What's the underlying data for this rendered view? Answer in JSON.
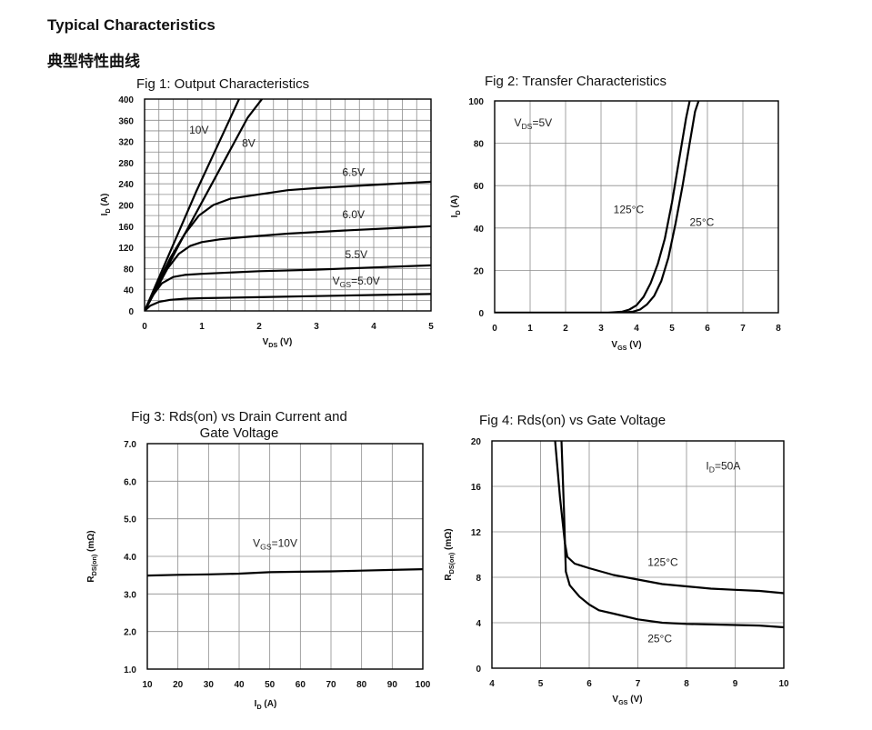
{
  "page": {
    "heading": "Typical Characteristics",
    "heading_cn": "典型特性曲线"
  },
  "chart_data": [
    {
      "id": "fig1",
      "type": "line",
      "title": "Fig 1: Output Characteristics",
      "xlabel": "VDS (V)",
      "x_sym": "V",
      "x_sub": "DS",
      "x_unit": " (V)",
      "ylabel": "ID (A)",
      "y_sym": "I",
      "y_sub": "D",
      "y_unit": " (A)",
      "xlim": [
        0,
        5
      ],
      "ylim": [
        0,
        400
      ],
      "xticks": [
        0,
        1,
        2,
        3,
        4,
        5
      ],
      "xticklabels": [
        "0",
        "1",
        "2",
        "3",
        "4",
        "5"
      ],
      "yticks": [
        0,
        40,
        80,
        120,
        160,
        200,
        240,
        280,
        320,
        360,
        400
      ],
      "yticklabels": [
        "0",
        "40",
        "80",
        "120",
        "160",
        "200",
        "240",
        "280",
        "320",
        "360",
        "400"
      ],
      "xgrid_step": 0.25,
      "ygrid_step": 20,
      "series": [
        {
          "name": "10V",
          "x": [
            0,
            0.3,
            0.6,
            0.9,
            1.2,
            1.5,
            1.65
          ],
          "y": [
            0,
            75,
            150,
            225,
            295,
            365,
            400
          ]
        },
        {
          "name": "8V",
          "x": [
            0,
            0.3,
            0.6,
            0.9,
            1.2,
            1.5,
            1.8,
            2.05
          ],
          "y": [
            0,
            62,
            125,
            185,
            245,
            305,
            365,
            400
          ]
        },
        {
          "name": "6.5V",
          "x": [
            0,
            0.2,
            0.45,
            0.7,
            0.95,
            1.2,
            1.5,
            2.0,
            2.5,
            3.0,
            3.5,
            4.0,
            4.5,
            5.0
          ],
          "y": [
            0,
            45,
            100,
            145,
            180,
            200,
            212,
            220,
            228,
            232,
            235,
            238,
            241,
            244
          ]
        },
        {
          "name": "6.0V",
          "x": [
            0,
            0.2,
            0.4,
            0.6,
            0.8,
            1.0,
            1.3,
            1.7,
            2.5,
            3.5,
            4.5,
            5.0
          ],
          "y": [
            0,
            40,
            80,
            108,
            123,
            130,
            135,
            139,
            146,
            152,
            157,
            160
          ]
        },
        {
          "name": "5.5V",
          "x": [
            0,
            0.15,
            0.3,
            0.5,
            0.7,
            1.0,
            2.0,
            3.0,
            4.0,
            5.0
          ],
          "y": [
            0,
            30,
            52,
            64,
            68,
            70,
            75,
            78,
            82,
            86
          ]
        },
        {
          "name": "VGS=5.0V",
          "x": [
            0,
            0.1,
            0.25,
            0.45,
            0.7,
            1.0,
            2.0,
            3.0,
            4.0,
            5.0
          ],
          "y": [
            0,
            10,
            17,
            21,
            23,
            24,
            26,
            28,
            30,
            32
          ]
        }
      ],
      "annotations": [
        {
          "text": "10V",
          "x": 0.78,
          "y": 335
        },
        {
          "text": "8V",
          "x": 1.7,
          "y": 310
        },
        {
          "text": "6.5V",
          "x": 3.45,
          "y": 255
        },
        {
          "text": "6.0V",
          "x": 3.45,
          "y": 175
        },
        {
          "text": "5.5V",
          "x": 3.5,
          "y": 100
        },
        {
          "sym": "V",
          "sub": "GS",
          "rest": "=5.0V",
          "x": 3.28,
          "y": 50
        }
      ]
    },
    {
      "id": "fig2",
      "type": "line",
      "title": "Fig 2: Transfer Characteristics",
      "xlabel": "VGS (V)",
      "x_sym": "V",
      "x_sub": "GS",
      "x_unit": " (V)",
      "ylabel": "ID (A)",
      "y_sym": "I",
      "y_sub": "D",
      "y_unit": " (A)",
      "xlim": [
        0,
        8
      ],
      "ylim": [
        0,
        100
      ],
      "xticks": [
        0,
        1,
        2,
        3,
        4,
        5,
        6,
        7,
        8
      ],
      "xticklabels": [
        "0",
        "1",
        "2",
        "3",
        "4",
        "5",
        "6",
        "7",
        "8"
      ],
      "yticks": [
        0,
        20,
        40,
        60,
        80,
        100
      ],
      "yticklabels": [
        "0",
        "20",
        "40",
        "60",
        "80",
        "100"
      ],
      "xgrid_step": 1,
      "ygrid_step": 20,
      "series": [
        {
          "name": "125°C",
          "x": [
            0,
            3.2,
            3.6,
            3.8,
            4.0,
            4.2,
            4.4,
            4.6,
            4.8,
            5.0,
            5.2,
            5.4,
            5.5
          ],
          "y": [
            0,
            0,
            0.5,
            1.5,
            3.5,
            7.5,
            14,
            23,
            35,
            52,
            72,
            92,
            100
          ]
        },
        {
          "name": "25°C",
          "x": [
            0,
            3.5,
            3.9,
            4.1,
            4.3,
            4.5,
            4.7,
            4.9,
            5.1,
            5.3,
            5.5,
            5.65,
            5.75
          ],
          "y": [
            0,
            0,
            0.5,
            1.5,
            4,
            8,
            15,
            26,
            42,
            60,
            80,
            95,
            100
          ]
        }
      ],
      "annotations": [
        {
          "sym": "V",
          "sub": "DS",
          "rest": "=5V",
          "x": 0.55,
          "y": 88
        },
        {
          "text": "125°C",
          "x": 3.35,
          "y": 47
        },
        {
          "text": "25°C",
          "x": 5.5,
          "y": 41
        }
      ]
    },
    {
      "id": "fig3",
      "type": "line",
      "title": "Fig 3: Rds(on) vs Drain Current and",
      "title2": "Gate Voltage",
      "xlabel": "ID (A)",
      "x_sym": "I",
      "x_sub": "D",
      "x_unit": " (A)",
      "ylabel": "RDS(on) (mΩ)",
      "y_sym": "R",
      "y_sub": "DS(on)",
      "y_unit": " (mΩ)",
      "xlim": [
        10,
        100
      ],
      "ylim": [
        1.0,
        7.0
      ],
      "xticks": [
        10,
        20,
        30,
        40,
        50,
        60,
        70,
        80,
        90,
        100
      ],
      "xticklabels": [
        "10",
        "20",
        "30",
        "40",
        "50",
        "60",
        "70",
        "80",
        "90",
        "100"
      ],
      "yticks": [
        1,
        2,
        3,
        4,
        5,
        6,
        7
      ],
      "yticklabels": [
        "1.0",
        "2.0",
        "3.0",
        "4.0",
        "5.0",
        "6.0",
        "7.0"
      ],
      "xgrid_step": 10,
      "ygrid_step": 1,
      "series": [
        {
          "name": "VGS=10V",
          "x": [
            10,
            20,
            30,
            40,
            50,
            60,
            70,
            80,
            90,
            100
          ],
          "y": [
            3.49,
            3.51,
            3.52,
            3.54,
            3.58,
            3.59,
            3.6,
            3.62,
            3.64,
            3.66
          ]
        }
      ],
      "annotations": [
        {
          "sym": "V",
          "sub": "GS",
          "rest": "=10V",
          "x": 44.5,
          "y": 4.25
        }
      ]
    },
    {
      "id": "fig4",
      "type": "line",
      "title": "Fig 4: Rds(on) vs Gate Voltage",
      "xlabel": "VGS (V)",
      "x_sym": "V",
      "x_sub": "GS",
      "x_unit": " (V)",
      "ylabel": "RDS(on) (mΩ)",
      "y_sym": "R",
      "y_sub": "DS(on)",
      "y_unit": " (mΩ)",
      "xlim": [
        4,
        10
      ],
      "ylim": [
        0,
        20
      ],
      "xticks": [
        4,
        5,
        6,
        7,
        8,
        9,
        10
      ],
      "xticklabels": [
        "4",
        "5",
        "6",
        "7",
        "8",
        "9",
        "10"
      ],
      "yticks": [
        0,
        4,
        8,
        12,
        16,
        20
      ],
      "yticklabels": [
        "0",
        "4",
        "8",
        "12",
        "16",
        "20"
      ],
      "xgrid_step": 1,
      "ygrid_step": 4,
      "series": [
        {
          "name": "125°C",
          "x": [
            5.3,
            5.4,
            5.5,
            5.55,
            5.7,
            6.0,
            6.5,
            7.0,
            7.5,
            8.0,
            8.5,
            9.0,
            9.5,
            10.0
          ],
          "y": [
            20,
            15,
            11,
            9.8,
            9.2,
            8.8,
            8.2,
            7.8,
            7.4,
            7.2,
            7.0,
            6.9,
            6.8,
            6.6
          ]
        },
        {
          "name": "25°C",
          "x": [
            5.43,
            5.48,
            5.52,
            5.6,
            5.8,
            6.0,
            6.2,
            6.5,
            7.0,
            7.5,
            8.0,
            8.5,
            9.0,
            9.5,
            10.0
          ],
          "y": [
            20,
            14,
            8.5,
            7.3,
            6.3,
            5.6,
            5.1,
            4.8,
            4.3,
            4.0,
            3.9,
            3.85,
            3.8,
            3.75,
            3.6
          ]
        }
      ],
      "annotations": [
        {
          "sym": "I",
          "sub": "D",
          "rest": "=50A",
          "x": 8.4,
          "y": 17.5
        },
        {
          "text": "125°C",
          "x": 7.2,
          "y": 9.0
        },
        {
          "text": "25°C",
          "x": 7.2,
          "y": 2.3
        }
      ]
    }
  ]
}
